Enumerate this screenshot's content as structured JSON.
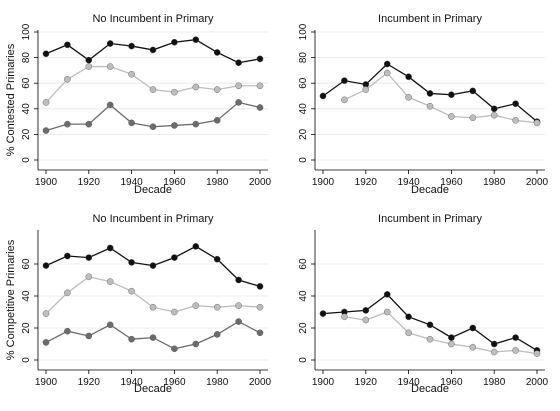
{
  "colors": {
    "background": "#ffffff",
    "series_black": "#111111",
    "series_light": "#bdbdbd",
    "series_dark": "#6b6b6b",
    "grid": "#e6e6e6"
  },
  "chart_data": [
    {
      "type": "line",
      "title": "No Incumbent in Primary",
      "xlabel": "Decade",
      "ylabel": "% Contested Primaries",
      "x": [
        1900,
        1910,
        1920,
        1930,
        1940,
        1950,
        1960,
        1970,
        1980,
        1990,
        2000
      ],
      "xlim": [
        1900,
        2000
      ],
      "ylim": [
        0,
        100
      ],
      "xticks": [
        1900,
        1920,
        1940,
        1960,
        1980,
        2000
      ],
      "yticks": [
        0,
        20,
        40,
        60,
        80,
        100
      ],
      "grid": true,
      "series": [
        {
          "color": "#111111",
          "values": [
            83,
            90,
            78,
            91,
            89,
            86,
            92,
            94,
            84,
            76,
            79
          ]
        },
        {
          "color": "#bdbdbd",
          "values": [
            45,
            63,
            73,
            73,
            67,
            55,
            53,
            57,
            55,
            58,
            58
          ]
        },
        {
          "color": "#6b6b6b",
          "values": [
            23,
            28,
            28,
            43,
            29,
            26,
            27,
            28,
            31,
            45,
            41
          ]
        }
      ]
    },
    {
      "type": "line",
      "title": "Incumbent in Primary",
      "xlabel": "Decade",
      "ylabel": "",
      "x": [
        1900,
        1910,
        1920,
        1930,
        1940,
        1950,
        1960,
        1970,
        1980,
        1990,
        2000
      ],
      "xlim": [
        1900,
        2000
      ],
      "ylim": [
        0,
        100
      ],
      "xticks": [
        1900,
        1920,
        1940,
        1960,
        1980,
        2000
      ],
      "yticks": [
        0,
        20,
        40,
        60,
        80,
        100
      ],
      "grid": true,
      "series": [
        {
          "color": "#111111",
          "values": [
            50,
            62,
            59,
            75,
            65,
            52,
            51,
            54,
            40,
            44,
            30
          ]
        },
        {
          "color": "#bdbdbd",
          "values": [
            null,
            47,
            55,
            68,
            49,
            42,
            34,
            33,
            35,
            31,
            29
          ]
        }
      ]
    },
    {
      "type": "line",
      "title": "No Incumbent in Primary",
      "xlabel": "Decade",
      "ylabel": "% Competitive Primaries",
      "x": [
        1900,
        1910,
        1920,
        1930,
        1940,
        1950,
        1960,
        1970,
        1980,
        1990,
        2000
      ],
      "xlim": [
        1900,
        2000
      ],
      "ylim": [
        0,
        80
      ],
      "xticks": [
        1900,
        1920,
        1940,
        1960,
        1980,
        2000
      ],
      "yticks": [
        0,
        20,
        40,
        60
      ],
      "grid": true,
      "series": [
        {
          "color": "#111111",
          "values": [
            59,
            65,
            64,
            70,
            61,
            59,
            64,
            71,
            63,
            50,
            46
          ]
        },
        {
          "color": "#bdbdbd",
          "values": [
            29,
            42,
            52,
            49,
            43,
            33,
            30,
            34,
            33,
            34,
            33
          ]
        },
        {
          "color": "#6b6b6b",
          "values": [
            11,
            18,
            15,
            22,
            13,
            14,
            7,
            10,
            16,
            24,
            17
          ]
        }
      ]
    },
    {
      "type": "line",
      "title": "Incumbent in Primary",
      "xlabel": "Decade",
      "ylabel": "",
      "x": [
        1900,
        1910,
        1920,
        1930,
        1940,
        1950,
        1960,
        1970,
        1980,
        1990,
        2000
      ],
      "xlim": [
        1900,
        2000
      ],
      "ylim": [
        0,
        80
      ],
      "xticks": [
        1900,
        1920,
        1940,
        1960,
        1980,
        2000
      ],
      "yticks": [
        0,
        20,
        40,
        60
      ],
      "grid": true,
      "series": [
        {
          "color": "#111111",
          "values": [
            29,
            30,
            31,
            41,
            27,
            22,
            14,
            20,
            10,
            14,
            6
          ]
        },
        {
          "color": "#bdbdbd",
          "values": [
            null,
            27,
            25,
            30,
            17,
            13,
            10,
            8,
            5,
            6,
            4
          ]
        }
      ]
    }
  ]
}
